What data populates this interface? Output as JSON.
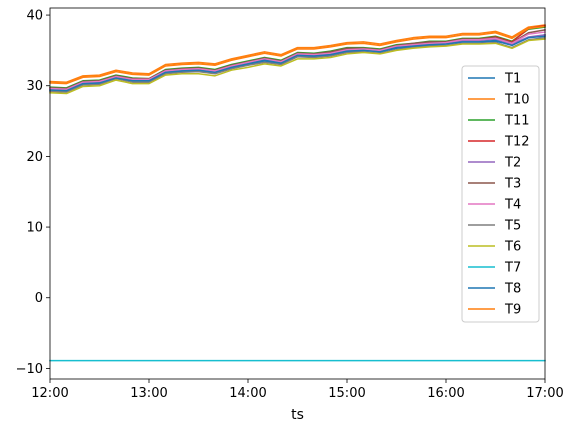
{
  "chart_data": {
    "type": "line",
    "title": "",
    "xlabel": "ts",
    "ylabel": "",
    "x": [
      "12:00",
      "12:10",
      "12:20",
      "12:30",
      "12:40",
      "12:50",
      "13:00",
      "13:10",
      "13:20",
      "13:30",
      "13:40",
      "13:50",
      "14:00",
      "14:10",
      "14:20",
      "14:30",
      "14:40",
      "14:50",
      "15:00",
      "15:10",
      "15:20",
      "15:30",
      "15:40",
      "15:50",
      "16:00",
      "16:10",
      "16:20",
      "16:30",
      "16:40",
      "16:50",
      "17:00"
    ],
    "xticks": [
      "12:00",
      "13:00",
      "14:00",
      "15:00",
      "16:00",
      "17:00"
    ],
    "xlim": [
      "12:00",
      "17:00"
    ],
    "ylim": [
      -11.5,
      41
    ],
    "yticks": [
      -10,
      0,
      10,
      20,
      30,
      40
    ],
    "grid": false,
    "legend_position": "center-right",
    "series": [
      {
        "name": "T1",
        "color": "#1f77b4",
        "values": [
          29.3,
          29.2,
          30.2,
          30.3,
          31.1,
          30.7,
          30.6,
          31.9,
          32.0,
          32.1,
          31.9,
          32.6,
          33.0,
          33.5,
          33.1,
          34.3,
          34.1,
          34.3,
          34.8,
          35.0,
          34.8,
          35.3,
          35.5,
          35.7,
          35.9,
          36.2,
          36.2,
          36.3,
          35.8,
          36.8,
          37.2
        ]
      },
      {
        "name": "T10",
        "color": "#ff7f0e",
        "values": [
          30.6,
          30.5,
          31.4,
          31.5,
          32.2,
          31.8,
          31.7,
          33.0,
          33.2,
          33.3,
          33.1,
          33.8,
          34.3,
          34.8,
          34.4,
          35.4,
          35.4,
          35.7,
          36.1,
          36.2,
          35.9,
          36.4,
          36.8,
          37.0,
          37.0,
          37.4,
          37.4,
          37.7,
          36.9,
          38.3,
          38.6
        ]
      },
      {
        "name": "T11",
        "color": "#2ca02c",
        "values": [
          29.8,
          29.7,
          30.7,
          30.8,
          31.5,
          31.1,
          31.0,
          32.3,
          32.5,
          32.6,
          32.3,
          33.0,
          33.5,
          34.0,
          33.6,
          34.7,
          34.6,
          34.9,
          35.4,
          35.4,
          35.2,
          35.8,
          36.0,
          36.3,
          36.3,
          36.7,
          36.7,
          37.0,
          36.3,
          38.0,
          38.3
        ]
      },
      {
        "name": "T12",
        "color": "#d62728",
        "values": [
          29.6,
          29.5,
          30.5,
          30.6,
          31.3,
          30.9,
          30.9,
          32.1,
          32.3,
          32.4,
          32.1,
          32.8,
          33.3,
          33.8,
          33.4,
          34.5,
          34.4,
          34.7,
          35.2,
          35.2,
          35.0,
          35.6,
          35.9,
          36.1,
          36.2,
          36.6,
          36.6,
          36.9,
          36.2,
          38.1,
          38.5
        ]
      },
      {
        "name": "T2",
        "color": "#9467bd",
        "values": [
          29.5,
          29.4,
          30.4,
          30.5,
          31.2,
          30.8,
          30.8,
          32.0,
          32.2,
          32.3,
          32.0,
          32.7,
          33.2,
          33.7,
          33.3,
          34.4,
          34.3,
          34.5,
          35.0,
          35.1,
          34.9,
          35.5,
          35.7,
          35.9,
          36.0,
          36.4,
          36.4,
          36.6,
          35.9,
          36.9,
          37.2
        ]
      },
      {
        "name": "T3",
        "color": "#8c564b",
        "values": [
          29.7,
          29.6,
          30.6,
          30.7,
          31.4,
          31.0,
          31.0,
          32.2,
          32.4,
          32.5,
          32.2,
          32.9,
          33.4,
          33.9,
          33.5,
          34.6,
          34.5,
          34.8,
          35.3,
          35.3,
          35.1,
          35.7,
          36.0,
          36.2,
          36.2,
          36.6,
          36.6,
          36.8,
          36.1,
          37.5,
          37.9
        ]
      },
      {
        "name": "T4",
        "color": "#e377c2",
        "values": [
          29.6,
          29.5,
          30.5,
          30.6,
          31.3,
          30.9,
          30.9,
          32.1,
          32.3,
          32.4,
          32.1,
          32.8,
          33.3,
          33.8,
          33.4,
          34.5,
          34.4,
          34.6,
          35.1,
          35.2,
          35.0,
          35.6,
          35.8,
          36.0,
          36.1,
          36.5,
          36.5,
          36.7,
          36.0,
          37.3,
          37.6
        ]
      },
      {
        "name": "T5",
        "color": "#7f7f7f",
        "values": [
          29.2,
          29.1,
          30.1,
          30.2,
          31.0,
          30.5,
          30.5,
          31.7,
          31.9,
          32.0,
          31.7,
          32.4,
          32.9,
          33.3,
          33.0,
          34.1,
          34.0,
          34.2,
          34.7,
          34.8,
          34.6,
          35.1,
          35.4,
          35.6,
          35.7,
          36.0,
          36.0,
          36.1,
          35.4,
          36.5,
          36.8
        ]
      },
      {
        "name": "T6",
        "color": "#bcbd22",
        "values": [
          29.0,
          28.9,
          29.9,
          30.0,
          30.8,
          30.3,
          30.3,
          31.5,
          31.7,
          31.7,
          31.4,
          32.2,
          32.6,
          33.1,
          32.8,
          33.8,
          33.8,
          34.0,
          34.5,
          34.7,
          34.5,
          35.0,
          35.3,
          35.5,
          35.6,
          35.9,
          35.9,
          36.0,
          35.3,
          36.4,
          36.6
        ]
      },
      {
        "name": "T7",
        "color": "#17becf",
        "values": [
          -8.9,
          -8.9,
          -8.9,
          -8.9,
          -8.9,
          -8.9,
          -8.9,
          -8.9,
          -8.9,
          -8.9,
          -8.9,
          -8.9,
          -8.9,
          -8.9,
          -8.9,
          -8.9,
          -8.9,
          -8.9,
          -8.9,
          -8.9,
          -8.9,
          -8.9,
          -8.9,
          -8.9,
          -8.9,
          -8.9,
          -8.9,
          -8.9,
          -8.9,
          -8.9,
          -8.9
        ]
      },
      {
        "name": "T8",
        "color": "#1f77b4",
        "values": [
          29.4,
          29.3,
          30.3,
          30.4,
          31.1,
          30.7,
          30.7,
          31.9,
          32.1,
          32.2,
          31.9,
          32.6,
          33.1,
          33.6,
          33.2,
          34.3,
          34.2,
          34.4,
          34.9,
          35.0,
          34.8,
          35.4,
          35.6,
          35.8,
          35.9,
          36.2,
          36.2,
          36.4,
          35.7,
          36.8,
          37.0
        ]
      },
      {
        "name": "T9",
        "color": "#ff7f0e",
        "values": [
          30.4,
          30.3,
          31.2,
          31.3,
          32.0,
          31.6,
          31.5,
          32.8,
          33.0,
          33.1,
          32.9,
          33.6,
          34.1,
          34.6,
          34.2,
          35.2,
          35.2,
          35.5,
          35.9,
          36.0,
          35.7,
          36.2,
          36.6,
          36.8,
          36.8,
          37.2,
          37.2,
          37.5,
          36.7,
          38.1,
          38.4
        ]
      }
    ]
  }
}
